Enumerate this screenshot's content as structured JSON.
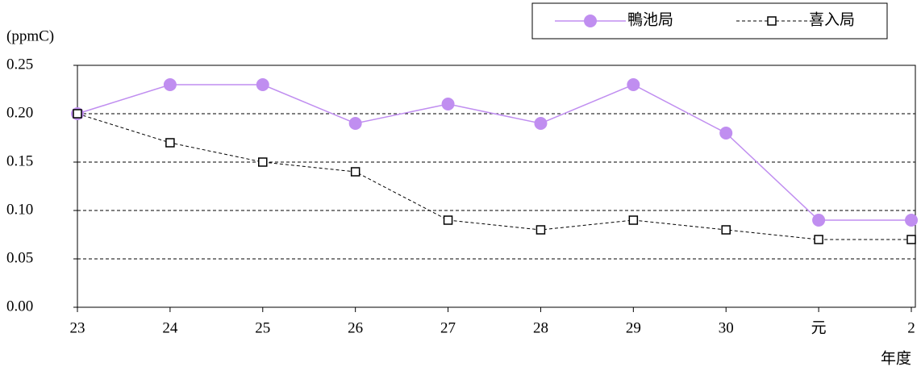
{
  "chart_data": {
    "type": "line",
    "y_unit_label": "(ppmC)",
    "x_label": "年度",
    "categories": [
      "23",
      "24",
      "25",
      "26",
      "27",
      "28",
      "29",
      "30",
      "元",
      "2"
    ],
    "series": [
      {
        "name": "鴨池局",
        "color": "#c08ef0",
        "marker": "circle",
        "line_style": "solid",
        "values": [
          0.2,
          0.23,
          0.23,
          0.19,
          0.21,
          0.19,
          0.23,
          0.18,
          0.09,
          0.09
        ]
      },
      {
        "name": "喜入局",
        "color": "#000000",
        "marker": "square",
        "line_style": "dashed",
        "values": [
          0.2,
          0.17,
          0.15,
          0.14,
          0.09,
          0.08,
          0.09,
          0.08,
          0.07,
          0.07
        ]
      }
    ],
    "ylim": [
      0,
      0.25
    ],
    "yticks": [
      {
        "value": 0,
        "label": "0.00"
      },
      {
        "value": 0.05,
        "label": "0.05"
      },
      {
        "value": 0.1,
        "label": "0.10"
      },
      {
        "value": 0.15,
        "label": "0.15"
      },
      {
        "value": 0.2,
        "label": "0.20"
      },
      {
        "value": 0.25,
        "label": "0.25"
      }
    ],
    "grid": true,
    "legend": "top-right"
  }
}
